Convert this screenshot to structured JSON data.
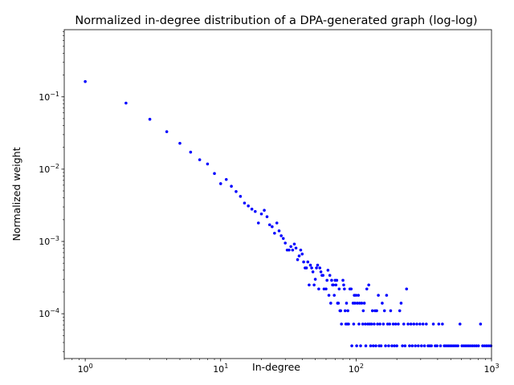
{
  "chart_data": {
    "type": "scatter",
    "title": "Normalized in-degree distribution of a DPA-generated graph (log-log)",
    "xlabel": "In-degree",
    "ylabel": "Normalized weight",
    "xscale": "log",
    "yscale": "log",
    "xlim": [
      0.7,
      1000
    ],
    "ylim": [
      2.4e-05,
      0.85
    ],
    "x_ticks": [
      {
        "base": "10",
        "exp": "0",
        "value": 1
      },
      {
        "base": "10",
        "exp": "1",
        "value": 10
      },
      {
        "base": "10",
        "exp": "2",
        "value": 100
      },
      {
        "base": "10",
        "exp": "3",
        "value": 1000
      }
    ],
    "y_ticks": [
      {
        "base": "10",
        "exp": "−4",
        "value": 0.0001
      },
      {
        "base": "10",
        "exp": "−3",
        "value": 0.001
      },
      {
        "base": "10",
        "exp": "−2",
        "value": 0.01
      },
      {
        "base": "10",
        "exp": "−1",
        "value": 0.1
      }
    ],
    "grid": false,
    "marker_color": "#0000ff",
    "points": [
      [
        1,
        0.163
      ],
      [
        2,
        0.082
      ],
      [
        3,
        0.049
      ],
      [
        4,
        0.033
      ],
      [
        5,
        0.0228
      ],
      [
        6,
        0.0172
      ],
      [
        7,
        0.0135
      ],
      [
        8,
        0.0118
      ],
      [
        9,
        0.0087
      ],
      [
        10,
        0.0063
      ],
      [
        11,
        0.0072
      ],
      [
        12,
        0.0058
      ],
      [
        13,
        0.0049
      ],
      [
        14,
        0.0042
      ],
      [
        15,
        0.0034
      ],
      [
        16,
        0.0031
      ],
      [
        17,
        0.0028
      ],
      [
        18,
        0.0026
      ],
      [
        19,
        0.0018
      ],
      [
        20,
        0.0024
      ],
      [
        21,
        0.0027
      ],
      [
        22,
        0.0022
      ],
      [
        23,
        0.0017
      ],
      [
        24,
        0.0016
      ],
      [
        25,
        0.0013
      ],
      [
        26,
        0.0018
      ],
      [
        27,
        0.0014
      ],
      [
        28,
        0.0012
      ],
      [
        29,
        0.0011
      ],
      [
        30,
        0.00095
      ],
      [
        31,
        0.00076
      ],
      [
        32,
        0.00076
      ],
      [
        33,
        0.00085
      ],
      [
        34,
        0.00076
      ],
      [
        35,
        0.00092
      ],
      [
        36,
        0.00081
      ],
      [
        37,
        0.00056
      ],
      [
        38,
        0.00063
      ],
      [
        39,
        0.00076
      ],
      [
        40,
        0.00067
      ],
      [
        41,
        0.00052
      ],
      [
        42,
        0.00043
      ],
      [
        43,
        0.00043
      ],
      [
        44,
        0.00052
      ],
      [
        45,
        0.00025
      ],
      [
        46,
        0.00047
      ],
      [
        47,
        0.00043
      ],
      [
        48,
        0.00038
      ],
      [
        49,
        0.00025
      ],
      [
        50,
        0.0003
      ],
      [
        51,
        0.00043
      ],
      [
        52,
        0.00047
      ],
      [
        53,
        0.00022
      ],
      [
        54,
        0.00043
      ],
      [
        55,
        0.00038
      ],
      [
        56,
        0.00034
      ],
      [
        57,
        0.00034
      ],
      [
        58,
        0.00022
      ],
      [
        60,
        0.00022
      ],
      [
        61,
        0.00029
      ],
      [
        62,
        0.0004
      ],
      [
        63,
        0.00018
      ],
      [
        64,
        0.00034
      ],
      [
        65,
        0.00014
      ],
      [
        66,
        0.00029
      ],
      [
        67,
        0.00025
      ],
      [
        68,
        0.00025
      ],
      [
        69,
        0.00018
      ],
      [
        70,
        0.00029
      ],
      [
        71,
        0.00025
      ],
      [
        72,
        0.00029
      ],
      [
        73,
        0.00014
      ],
      [
        74,
        0.00014
      ],
      [
        75,
        0.00022
      ],
      [
        76,
        0.00011
      ],
      [
        77,
        0.00011
      ],
      [
        78,
        7.2e-05
      ],
      [
        80,
        0.00029
      ],
      [
        81,
        0.00025
      ],
      [
        82,
        0.00022
      ],
      [
        83,
        0.00011
      ],
      [
        84,
        7.2e-05
      ],
      [
        85,
        0.00014
      ],
      [
        86,
        7.2e-05
      ],
      [
        87,
        0.00011
      ],
      [
        88,
        7.2e-05
      ],
      [
        90,
        0.00022
      ],
      [
        92,
        0.00022
      ],
      [
        93,
        3.6e-05
      ],
      [
        95,
        0.00014
      ],
      [
        96,
        7.2e-05
      ],
      [
        97,
        0.00018
      ],
      [
        98,
        0.00014
      ],
      [
        100,
        0.00018
      ],
      [
        101,
        3.6e-05
      ],
      [
        102,
        0.00014
      ],
      [
        104,
        0.00018
      ],
      [
        105,
        7.2e-05
      ],
      [
        106,
        0.00014
      ],
      [
        108,
        3.6e-05
      ],
      [
        110,
        0.00014
      ],
      [
        112,
        7.2e-05
      ],
      [
        113,
        0.00011
      ],
      [
        115,
        0.00014
      ],
      [
        117,
        7.2e-05
      ],
      [
        118,
        3.6e-05
      ],
      [
        120,
        0.00022
      ],
      [
        122,
        7.2e-05
      ],
      [
        124,
        0.00025
      ],
      [
        126,
        7.2e-05
      ],
      [
        128,
        3.6e-05
      ],
      [
        130,
        7.2e-05
      ],
      [
        132,
        0.00011
      ],
      [
        134,
        3.6e-05
      ],
      [
        136,
        7.2e-05
      ],
      [
        138,
        0.00011
      ],
      [
        140,
        3.6e-05
      ],
      [
        142,
        0.00011
      ],
      [
        144,
        7.2e-05
      ],
      [
        146,
        0.00018
      ],
      [
        148,
        3.6e-05
      ],
      [
        150,
        7.2e-05
      ],
      [
        153,
        3.6e-05
      ],
      [
        156,
        0.00014
      ],
      [
        159,
        7.2e-05
      ],
      [
        162,
        0.00011
      ],
      [
        165,
        3.6e-05
      ],
      [
        168,
        0.00018
      ],
      [
        171,
        7.2e-05
      ],
      [
        174,
        3.6e-05
      ],
      [
        177,
        7.2e-05
      ],
      [
        180,
        0.00011
      ],
      [
        184,
        3.6e-05
      ],
      [
        188,
        7.2e-05
      ],
      [
        192,
        3.6e-05
      ],
      [
        196,
        7.2e-05
      ],
      [
        200,
        3.6e-05
      ],
      [
        205,
        7.2e-05
      ],
      [
        210,
        0.00011
      ],
      [
        215,
        0.00014
      ],
      [
        220,
        3.6e-05
      ],
      [
        225,
        7.2e-05
      ],
      [
        230,
        3.6e-05
      ],
      [
        236,
        0.00022
      ],
      [
        242,
        7.2e-05
      ],
      [
        248,
        3.6e-05
      ],
      [
        254,
        7.2e-05
      ],
      [
        260,
        3.6e-05
      ],
      [
        267,
        7.2e-05
      ],
      [
        274,
        3.6e-05
      ],
      [
        281,
        7.2e-05
      ],
      [
        288,
        3.6e-05
      ],
      [
        296,
        7.2e-05
      ],
      [
        304,
        3.6e-05
      ],
      [
        312,
        7.2e-05
      ],
      [
        320,
        3.6e-05
      ],
      [
        330,
        7.2e-05
      ],
      [
        340,
        3.6e-05
      ],
      [
        350,
        3.6e-05
      ],
      [
        360,
        3.6e-05
      ],
      [
        372,
        7.2e-05
      ],
      [
        384,
        3.6e-05
      ],
      [
        396,
        3.6e-05
      ],
      [
        408,
        7.2e-05
      ],
      [
        420,
        3.6e-05
      ],
      [
        434,
        7.2e-05
      ],
      [
        448,
        3.6e-05
      ],
      [
        462,
        3.6e-05
      ],
      [
        478,
        3.6e-05
      ],
      [
        494,
        3.6e-05
      ],
      [
        510,
        3.6e-05
      ],
      [
        528,
        3.6e-05
      ],
      [
        546,
        3.6e-05
      ],
      [
        565,
        3.6e-05
      ],
      [
        585,
        7.2e-05
      ],
      [
        605,
        3.6e-05
      ],
      [
        626,
        3.6e-05
      ],
      [
        648,
        3.6e-05
      ],
      [
        671,
        3.6e-05
      ],
      [
        695,
        3.6e-05
      ],
      [
        720,
        3.6e-05
      ],
      [
        746,
        3.6e-05
      ],
      [
        773,
        3.6e-05
      ],
      [
        801,
        3.6e-05
      ],
      [
        830,
        7.2e-05
      ],
      [
        860,
        3.6e-05
      ],
      [
        891,
        3.6e-05
      ],
      [
        923,
        3.6e-05
      ],
      [
        956,
        3.6e-05
      ],
      [
        990,
        3.6e-05
      ]
    ]
  }
}
